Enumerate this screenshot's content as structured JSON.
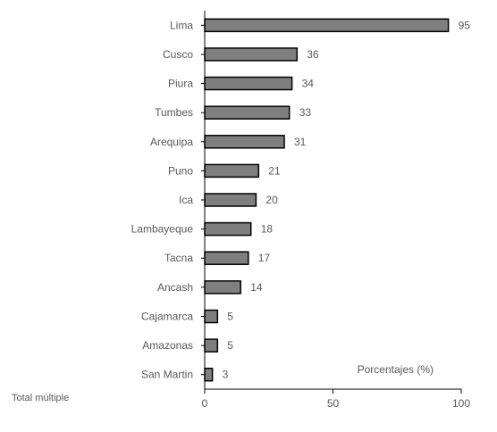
{
  "colors": {
    "bar_fill": "#7f7f7f",
    "bar_stroke": "#000000",
    "axis": "#000000",
    "text": "#595959"
  },
  "chart_data": {
    "type": "bar",
    "orientation": "horizontal",
    "categories": [
      "Lima",
      "Cusco",
      "Piura",
      "Tumbes",
      "Arequipa",
      "Puno",
      "Ica",
      "Lambayeque",
      "Tacna",
      "Ancash",
      "Cajamarca",
      "Amazonas",
      "San Martin"
    ],
    "values": [
      95,
      36,
      34,
      33,
      31,
      21,
      20,
      18,
      17,
      14,
      5,
      5,
      3
    ],
    "data_labels": true,
    "xlim": [
      0,
      100
    ],
    "xticks": [
      0,
      50,
      100
    ],
    "xlabel": "Porcentajes (%)",
    "ylabel": "Total múltiple",
    "grid": false,
    "legend": "none"
  }
}
